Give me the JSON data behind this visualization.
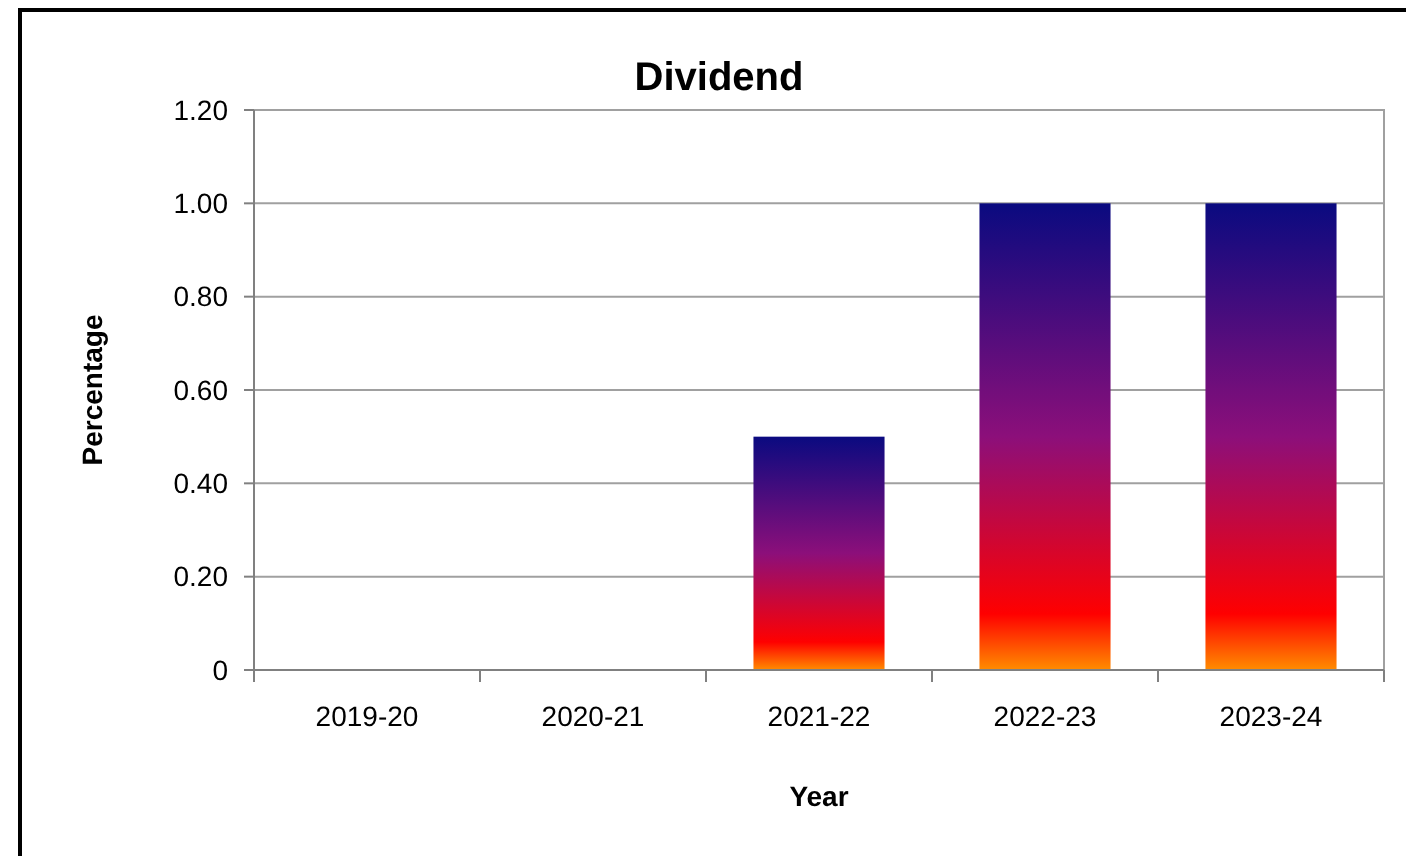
{
  "chart_data": {
    "type": "bar",
    "title": "Dividend",
    "xlabel": "Year",
    "ylabel": "Percentage",
    "categories": [
      "2019-20",
      "2020-21",
      "2021-22",
      "2022-23",
      "2023-24"
    ],
    "values": [
      0,
      0,
      0.5,
      1,
      1
    ],
    "color": "#8c0f7a",
    "ylim": [
      0,
      1.2
    ],
    "yticks": [
      0,
      {
        "value": 0.2,
        "label": "0.20"
      },
      {
        "value": 0.4,
        "label": "0.40"
      },
      {
        "value": 0.6,
        "label": "0.60"
      },
      {
        "value": 0.8,
        "label": "0.80"
      },
      {
        "value": 1,
        "label": "1.00"
      },
      {
        "value": 1.2,
        "label": "1.20"
      }
    ],
    "grid": "y"
  }
}
